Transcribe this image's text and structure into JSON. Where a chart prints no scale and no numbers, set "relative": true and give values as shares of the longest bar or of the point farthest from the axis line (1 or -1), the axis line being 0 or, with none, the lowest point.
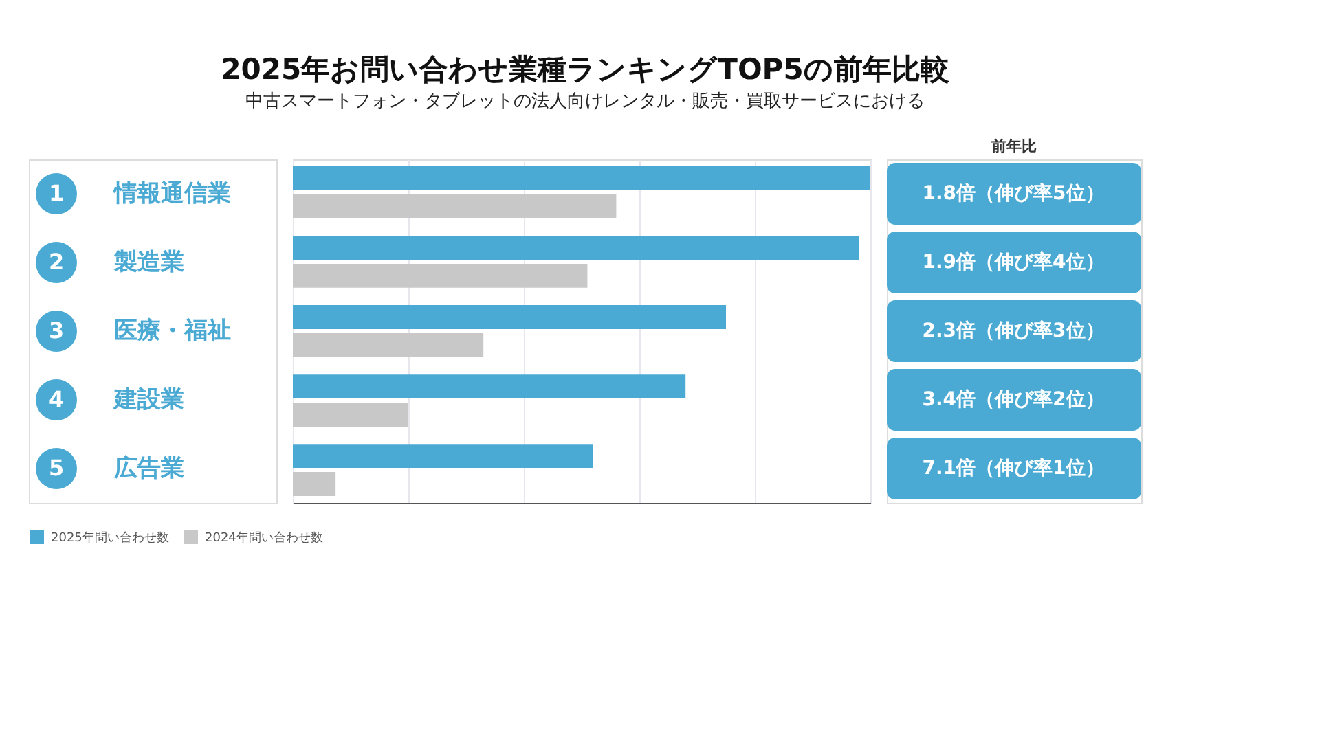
{
  "chart_data": {
    "type": "bar",
    "orientation": "horizontal",
    "relative": true,
    "title": "2025年お問い合わせ業種ランキングTOP5の前年比較",
    "subtitle": "中古スマートフォン・タブレットの法人向けレンタル・販売・買取サービスにおける",
    "categories": [
      "情報通信業",
      "製造業",
      "医療・福祉",
      "建設業",
      "広告業"
    ],
    "series": [
      {
        "name": "2025年問い合わせ数",
        "color": "#4aaad3",
        "values": [
          1,
          0.98,
          0.75,
          0.68,
          0.52
        ]
      },
      {
        "name": "2024年問い合わせ数",
        "color": "#c8c8c8",
        "values": [
          0.56,
          0.51,
          0.33,
          0.2,
          0.074
        ]
      }
    ],
    "annotations": [
      "前年比",
      "1.8倍（伸び率5位）",
      "1.9倍（伸び率4位）",
      "2.3倍（伸び率3位）",
      "3.4倍（伸び率2位）",
      "7.1倍（伸び率1位）",
      "1",
      "2",
      "3",
      "4",
      "5"
    ],
    "grid": "x",
    "legend": "bottom"
  }
}
